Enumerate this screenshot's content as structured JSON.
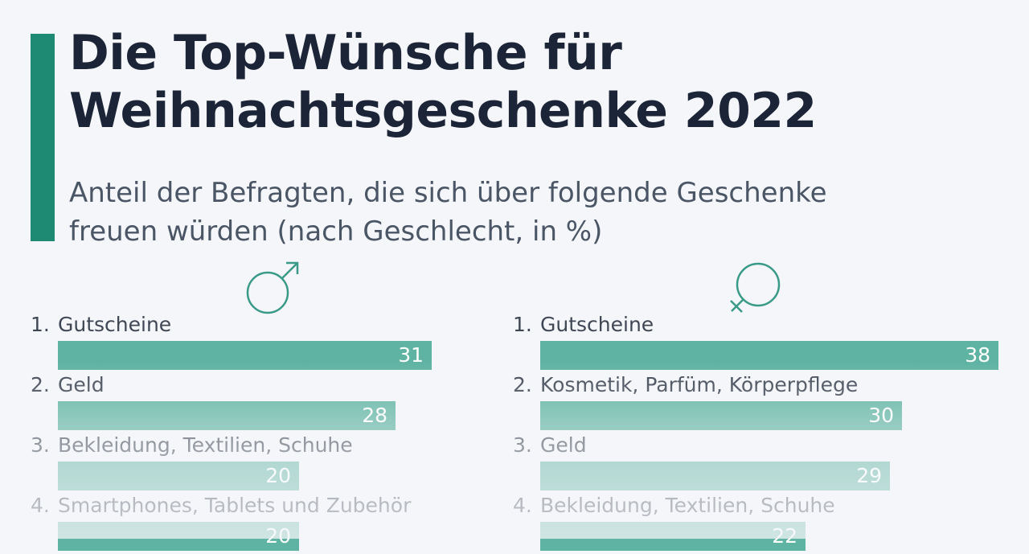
{
  "title": {
    "line1": "Die Top-Wünsche für",
    "line2": "Weihnachtsgeschenke 2022"
  },
  "subtitle": {
    "line1": "Anteil der Befragten, die sich über folgende Geschenke",
    "line2": "freuen würden (nach Geschlecht, in %)"
  },
  "colors": {
    "accent": "#1e8a74",
    "bar": "#5fb3a2",
    "title": "#1c2438",
    "text": "#3f4755"
  },
  "chart_data": [
    {
      "type": "bar",
      "group": "male",
      "icon": "male-symbol-icon",
      "categories": [
        "Gutscheine",
        "Geld",
        "Bekleidung, Textilien, Schuhe",
        "Smartphones, Tablets und Zubehör"
      ],
      "ranks": [
        "1.",
        "2.",
        "3.",
        "4."
      ],
      "values": [
        31,
        28,
        20,
        20
      ],
      "xlim": [
        0,
        38
      ]
    },
    {
      "type": "bar",
      "group": "female",
      "icon": "female-symbol-icon",
      "categories": [
        "Gutscheine",
        "Kosmetik, Parfüm, Körperpflege",
        "Geld",
        "Bekleidung, Textilien, Schuhe"
      ],
      "ranks": [
        "1.",
        "2.",
        "3.",
        "4."
      ],
      "values": [
        38,
        30,
        29,
        22
      ],
      "xlim": [
        0,
        38
      ]
    }
  ]
}
